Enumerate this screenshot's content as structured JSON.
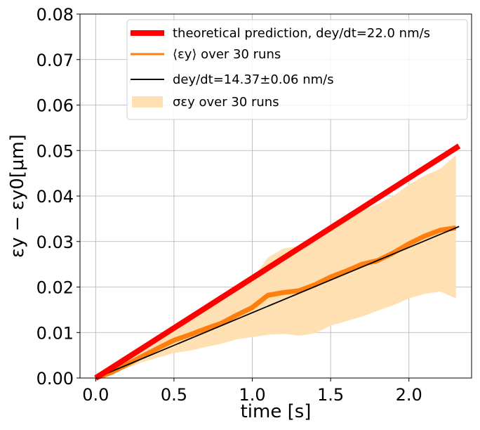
{
  "chart_data": {
    "type": "line",
    "title": "",
    "xlabel": "time [s]",
    "ylabel": "εy − εy0[μm]",
    "xlim": [
      -0.1,
      2.4
    ],
    "ylim": [
      0.0,
      0.08
    ],
    "xticks": [
      "0.0",
      "0.5",
      "1.0",
      "1.5",
      "2.0"
    ],
    "yticks": [
      "0.00",
      "0.01",
      "0.02",
      "0.03",
      "0.04",
      "0.05",
      "0.06",
      "0.07",
      "0.08"
    ],
    "grid": true,
    "legend_position": "top-right",
    "legend": [
      {
        "label": "theoretical prediction, dey/dt=22.0 nm/s"
      },
      {
        "label": "⟨εy⟩ over 30 runs"
      },
      {
        "label": "dey/dt=14.37±0.06 nm/s"
      },
      {
        "label": "σεy over 30 runs"
      }
    ],
    "series": [
      {
        "name": "theoretical prediction, dey/dt=22.0 nm/s",
        "kind": "line",
        "color": "#ff0000",
        "x": [
          0.0,
          2.32
        ],
        "y": [
          0.0,
          0.051
        ]
      },
      {
        "name": "⟨εy⟩ over 30 runs",
        "kind": "line",
        "color": "#ff7f0e",
        "x": [
          0.0,
          0.1,
          0.2,
          0.3,
          0.4,
          0.5,
          0.6,
          0.7,
          0.8,
          0.9,
          1.0,
          1.1,
          1.2,
          1.3,
          1.4,
          1.5,
          1.6,
          1.7,
          1.8,
          1.9,
          2.0,
          2.1,
          2.2,
          2.3
        ],
        "y": [
          0.0,
          0.0012,
          0.003,
          0.0048,
          0.0066,
          0.0083,
          0.0095,
          0.0108,
          0.012,
          0.0138,
          0.0155,
          0.0182,
          0.0188,
          0.0192,
          0.0205,
          0.0222,
          0.0235,
          0.025,
          0.0258,
          0.0275,
          0.0295,
          0.0312,
          0.0325,
          0.033
        ]
      },
      {
        "name": "dey/dt=14.37±0.06 nm/s",
        "kind": "line",
        "color": "#000000",
        "x": [
          0.0,
          2.32
        ],
        "y": [
          0.0,
          0.0333
        ]
      },
      {
        "name": "σεy over 30 runs",
        "kind": "band",
        "color": "#ffe0b2",
        "x": [
          0.0,
          0.1,
          0.2,
          0.3,
          0.4,
          0.5,
          0.6,
          0.7,
          0.8,
          0.9,
          1.0,
          1.1,
          1.2,
          1.3,
          1.4,
          1.5,
          1.6,
          1.7,
          1.8,
          1.9,
          2.0,
          2.1,
          2.2,
          2.3
        ],
        "lower": [
          0.0,
          0.001,
          0.0022,
          0.0035,
          0.0045,
          0.0055,
          0.006,
          0.0068,
          0.0075,
          0.0085,
          0.009,
          0.0095,
          0.0097,
          0.0093,
          0.0098,
          0.0115,
          0.0125,
          0.0135,
          0.0148,
          0.016,
          0.0175,
          0.0185,
          0.019,
          0.0175
        ],
        "upper": [
          0.0,
          0.0015,
          0.0038,
          0.006,
          0.0085,
          0.011,
          0.013,
          0.0148,
          0.0168,
          0.019,
          0.0218,
          0.0265,
          0.0285,
          0.029,
          0.0312,
          0.0335,
          0.035,
          0.0368,
          0.0382,
          0.04,
          0.0425,
          0.0445,
          0.046,
          0.049
        ]
      }
    ]
  }
}
